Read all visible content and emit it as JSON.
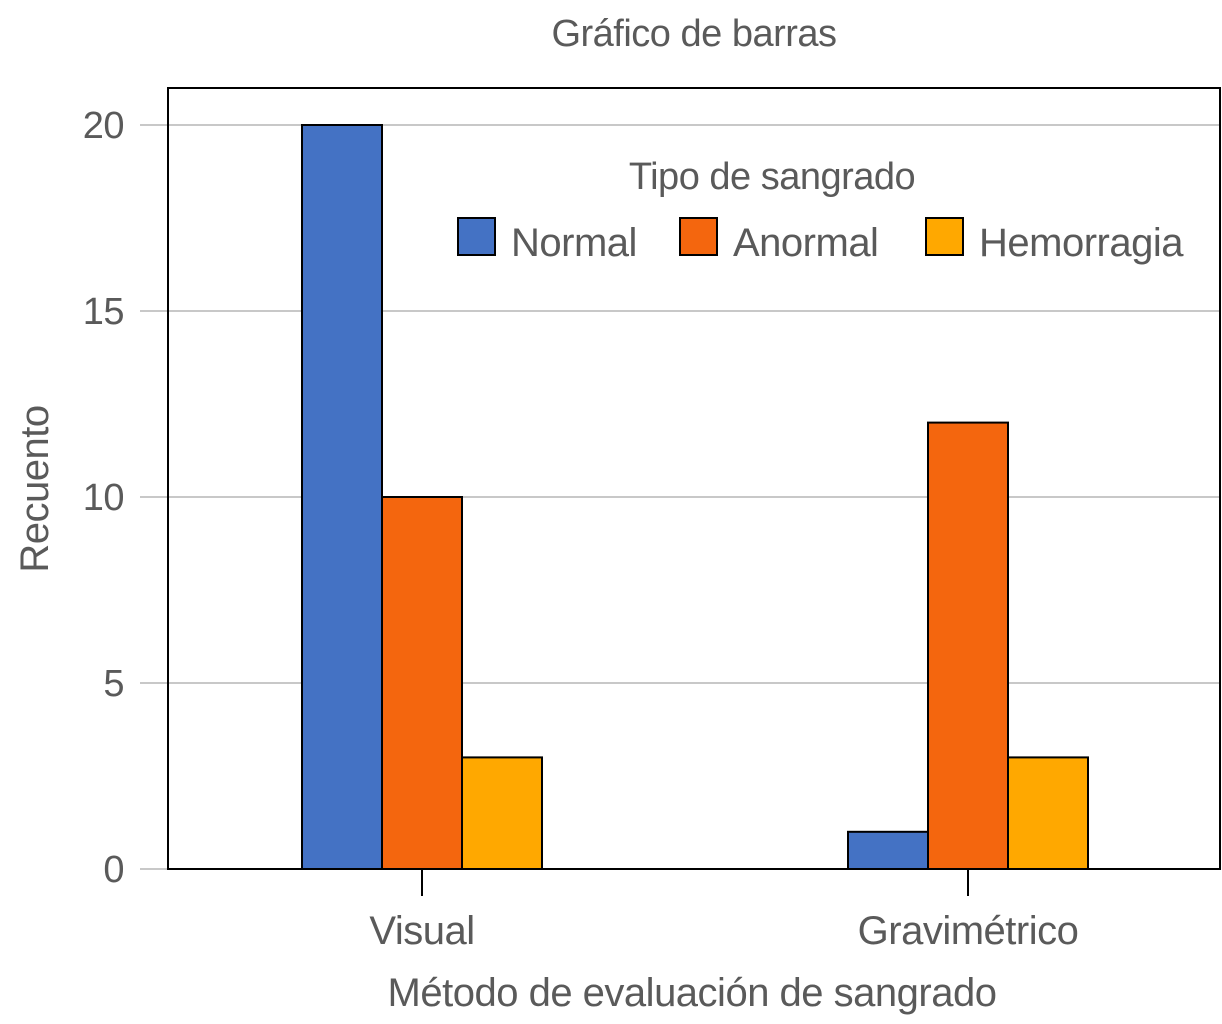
{
  "chart_data": {
    "type": "bar",
    "title": "Gráfico de barras",
    "xlabel": "Método de evaluación de sangrado",
    "ylabel": "Recuento",
    "ylim": [
      0,
      21
    ],
    "yticks": [
      0,
      5,
      10,
      15,
      20
    ],
    "ytick_labels": [
      "0",
      "5",
      "10",
      "15",
      "20"
    ],
    "grid": true,
    "categories": [
      "Visual",
      "Gravimétrico"
    ],
    "legend": {
      "title": "Tipo de sangrado",
      "placement": "top-right"
    },
    "series": [
      {
        "name": "Normal",
        "color": "#4472C4",
        "values": [
          20,
          1
        ]
      },
      {
        "name": "Anormal",
        "color": "#F4660E",
        "values": [
          10,
          12
        ]
      },
      {
        "name": "Hemorragia",
        "color": "#FFA800",
        "values": [
          3,
          3
        ]
      }
    ]
  }
}
